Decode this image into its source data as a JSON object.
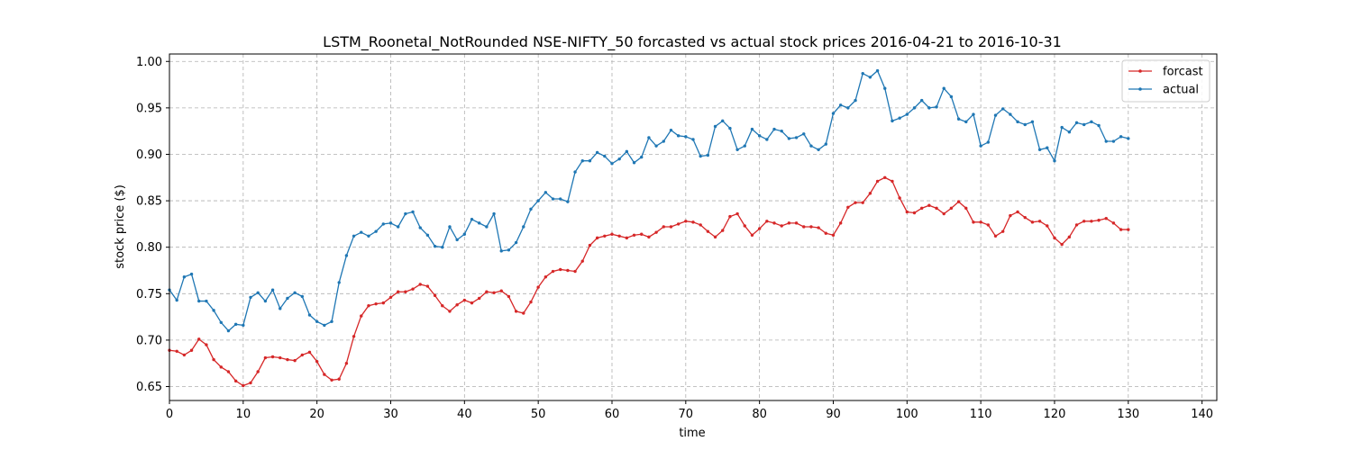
{
  "chart_data": {
    "type": "line",
    "title": "LSTM_Roonetal_NotRounded NSE-NIFTY_50 forcasted vs actual stock prices 2016-04-21 to 2016-10-31",
    "xlabel": "time",
    "ylabel": "stock price ($)",
    "xlim": [
      0,
      142
    ],
    "ylim": [
      0.635,
      1.008
    ],
    "xticks": [
      0,
      10,
      20,
      30,
      40,
      50,
      60,
      70,
      80,
      90,
      100,
      110,
      120,
      130,
      140
    ],
    "yticks": [
      0.65,
      0.7,
      0.75,
      0.8,
      0.85,
      0.9,
      0.95,
      1.0
    ],
    "grid": true,
    "legend_position": "top-right",
    "series": [
      {
        "name": "forcast",
        "color": "#d62728",
        "values": [
          0.689,
          0.688,
          0.684,
          0.689,
          0.701,
          0.695,
          0.679,
          0.671,
          0.666,
          0.656,
          0.651,
          0.654,
          0.666,
          0.681,
          0.682,
          0.681,
          0.679,
          0.678,
          0.684,
          0.687,
          0.677,
          0.663,
          0.657,
          0.658,
          0.675,
          0.704,
          0.726,
          0.737,
          0.739,
          0.74,
          0.746,
          0.752,
          0.752,
          0.755,
          0.76,
          0.758,
          0.748,
          0.737,
          0.731,
          0.738,
          0.743,
          0.74,
          0.745,
          0.752,
          0.751,
          0.753,
          0.747,
          0.731,
          0.729,
          0.741,
          0.757,
          0.768,
          0.774,
          0.776,
          0.775,
          0.774,
          0.785,
          0.802,
          0.81,
          0.812,
          0.814,
          0.812,
          0.81,
          0.813,
          0.814,
          0.811,
          0.816,
          0.822,
          0.822,
          0.825,
          0.828,
          0.827,
          0.824,
          0.817,
          0.811,
          0.818,
          0.833,
          0.836,
          0.823,
          0.813,
          0.82,
          0.828,
          0.826,
          0.823,
          0.826,
          0.826,
          0.822,
          0.822,
          0.821,
          0.815,
          0.813,
          0.826,
          0.843,
          0.848,
          0.848,
          0.858,
          0.871,
          0.875,
          0.871,
          0.853,
          0.838,
          0.837,
          0.842,
          0.845,
          0.842,
          0.836,
          0.842,
          0.849,
          0.842,
          0.827,
          0.827,
          0.824,
          0.812,
          0.817,
          0.834,
          0.838,
          0.832,
          0.827,
          0.828,
          0.823,
          0.81,
          0.803,
          0.811,
          0.824,
          0.828,
          0.828,
          0.829,
          0.831,
          0.826,
          0.819,
          0.819
        ]
      },
      {
        "name": "actual",
        "color": "#1f77b4",
        "values": [
          0.754,
          0.743,
          0.768,
          0.771,
          0.742,
          0.742,
          0.732,
          0.719,
          0.71,
          0.717,
          0.716,
          0.746,
          0.751,
          0.742,
          0.754,
          0.734,
          0.745,
          0.751,
          0.747,
          0.727,
          0.72,
          0.716,
          0.72,
          0.762,
          0.791,
          0.812,
          0.816,
          0.812,
          0.817,
          0.825,
          0.826,
          0.822,
          0.836,
          0.838,
          0.821,
          0.813,
          0.801,
          0.8,
          0.822,
          0.808,
          0.814,
          0.83,
          0.826,
          0.822,
          0.836,
          0.796,
          0.797,
          0.805,
          0.822,
          0.841,
          0.85,
          0.859,
          0.852,
          0.852,
          0.849,
          0.881,
          0.893,
          0.893,
          0.902,
          0.898,
          0.89,
          0.895,
          0.903,
          0.891,
          0.897,
          0.918,
          0.909,
          0.914,
          0.926,
          0.92,
          0.919,
          0.916,
          0.898,
          0.899,
          0.93,
          0.936,
          0.928,
          0.905,
          0.909,
          0.927,
          0.92,
          0.916,
          0.927,
          0.925,
          0.917,
          0.918,
          0.922,
          0.909,
          0.905,
          0.911,
          0.944,
          0.953,
          0.95,
          0.958,
          0.987,
          0.983,
          0.99,
          0.971,
          0.936,
          0.939,
          0.943,
          0.95,
          0.958,
          0.95,
          0.951,
          0.971,
          0.962,
          0.938,
          0.935,
          0.943,
          0.909,
          0.913,
          0.942,
          0.949,
          0.943,
          0.935,
          0.932,
          0.935,
          0.905,
          0.907,
          0.893,
          0.929,
          0.924,
          0.934,
          0.932,
          0.935,
          0.931,
          0.914,
          0.914,
          0.919,
          0.917
        ]
      }
    ]
  }
}
